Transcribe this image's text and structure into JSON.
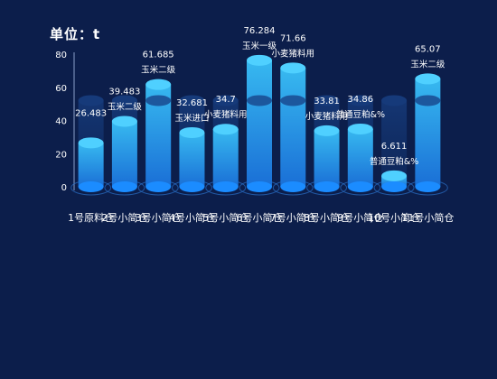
{
  "unit_title": "单位：t",
  "chart_data": {
    "type": "bar",
    "title": "单位：t",
    "categories": [
      "1号原料仓",
      "2号小简仓",
      "3号小简仓",
      "4号小简仓",
      "5号小简仓",
      "6号小简仓",
      "7号小简仓",
      "8号小简仓",
      "9号小简仓",
      "10号小简仓",
      "11号小简仓"
    ],
    "x_tick_labels": [
      "1号原料仓",
      "2号小简仓",
      "3号小简仓",
      "4号小简仓",
      "5号小简仓",
      "6号小简仓",
      "7号小简仓",
      "8号小简仓",
      "9号小简仓",
      "10号小简仓",
      "11号小简仓"
    ],
    "values": [
      26.483,
      39.483,
      61.685,
      32.681,
      34.7,
      76.284,
      71.66,
      33.81,
      34.86,
      6.611,
      65.07
    ],
    "value_labels": [
      "26.483",
      "39.483",
      "61.685",
      "32.681",
      "34.7",
      "76.284",
      "71.66",
      "33.81",
      "34.86",
      "6.611",
      "65.07"
    ],
    "materials": [
      "",
      "玉米二级",
      "玉米二级",
      "玉米进口",
      "小麦猪料用",
      "玉米一级",
      "小麦猪料用",
      "小麦猪料用",
      "普通豆粕&%",
      "普通豆粕&%",
      "玉米二级"
    ],
    "ylim": [
      0,
      80
    ],
    "yticks": [
      0,
      20,
      40,
      60,
      80
    ],
    "y_tick_labels": [
      "0",
      "20",
      "40",
      "60",
      "80"
    ],
    "capacity_reference": 52,
    "grid": false,
    "colors": {
      "background": "#0c1e4b",
      "bar_top": "#37b9f0",
      "bar_bottom": "#1a6fd6",
      "cap": "#4fd0ff",
      "base": "#1b8cff",
      "ghost_cylinder": "#163a7a",
      "text": "#ffffff"
    }
  }
}
